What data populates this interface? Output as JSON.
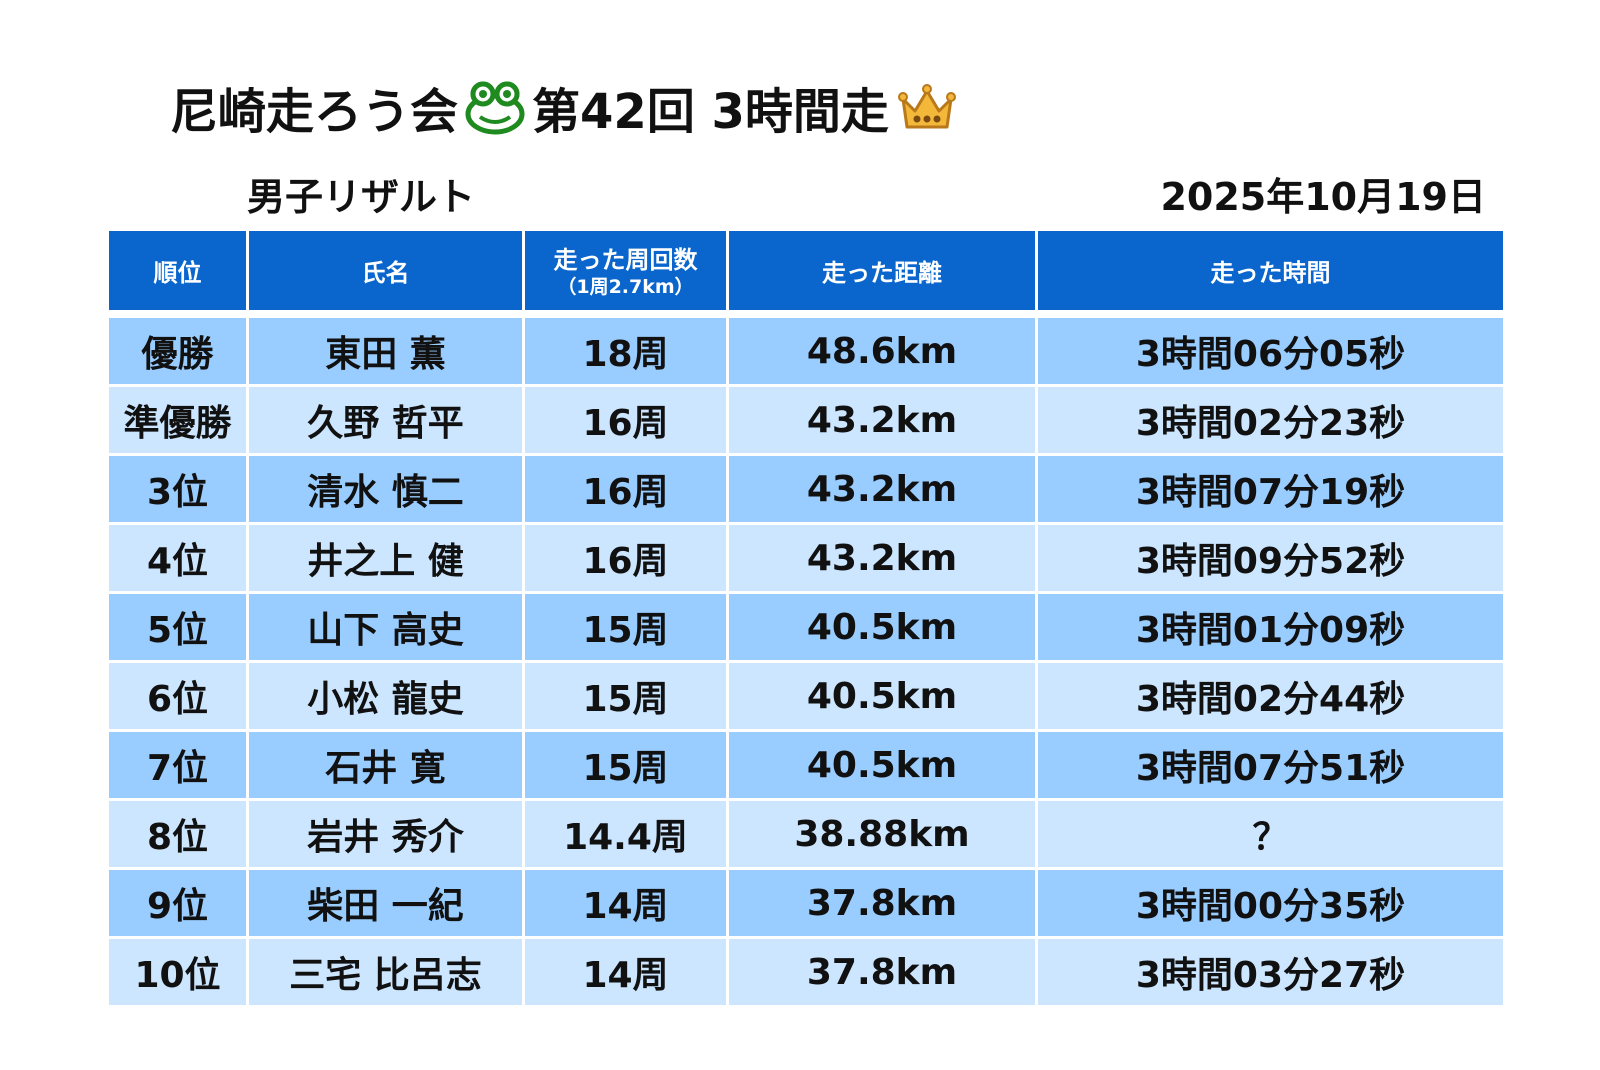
{
  "title": {
    "part1": "尼崎走ろう会",
    "part2": "第42回 3時間走",
    "frog_icon": "frog-icon",
    "crown_icon": "crown-icon"
  },
  "subtitle": "男子リザルト",
  "date": "2025年10月19日",
  "colors": {
    "header_bg": "#0a66cc",
    "row_dark": "#99ccff",
    "row_light": "#cce6ff",
    "frog": "#1f8a1f",
    "crown": "#c58a1a"
  },
  "table": {
    "headers": {
      "rank": "順位",
      "name": "氏名",
      "laps": "走った周回数",
      "laps_note": "（1周2.7km）",
      "distance": "走った距離",
      "time": "走った時間"
    },
    "rows": [
      {
        "rank": "優勝",
        "name": "東田 薫",
        "laps": "18周",
        "distance": "48.6km",
        "time": "3時間06分05秒"
      },
      {
        "rank": "準優勝",
        "name": "久野 哲平",
        "laps": "16周",
        "distance": "43.2km",
        "time": "3時間02分23秒"
      },
      {
        "rank": "3位",
        "name": "清水 慎二",
        "laps": "16周",
        "distance": "43.2km",
        "time": "3時間07分19秒"
      },
      {
        "rank": "4位",
        "name": "井之上 健",
        "laps": "16周",
        "distance": "43.2km",
        "time": "3時間09分52秒"
      },
      {
        "rank": "5位",
        "name": "山下 高史",
        "laps": "15周",
        "distance": "40.5km",
        "time": "3時間01分09秒"
      },
      {
        "rank": "6位",
        "name": "小松 龍史",
        "laps": "15周",
        "distance": "40.5km",
        "time": "3時間02分44秒"
      },
      {
        "rank": "7位",
        "name": "石井 寛",
        "laps": "15周",
        "distance": "40.5km",
        "time": "3時間07分51秒"
      },
      {
        "rank": "8位",
        "name": "岩井 秀介",
        "laps": "14.4周",
        "distance": "38.88km",
        "time": "？"
      },
      {
        "rank": "9位",
        "name": "柴田 一紀",
        "laps": "14周",
        "distance": "37.8km",
        "time": "3時間00分35秒"
      },
      {
        "rank": "10位",
        "name": "三宅 比呂志",
        "laps": "14周",
        "distance": "37.8km",
        "time": "3時間03分27秒"
      }
    ]
  }
}
